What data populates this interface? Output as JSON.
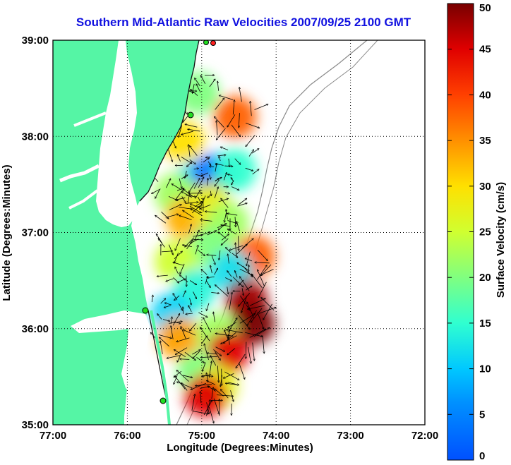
{
  "chart_data": {
    "type": "heatmap",
    "title": "Southern Mid-Atlantic Raw Velocities 2007/09/25 2100 GMT",
    "xlabel": "Longitude (Degrees:Minutes)",
    "ylabel": "Latitude (Degrees:Minutes)",
    "colorbar_label": "Surface Velocity (cm/s)",
    "x_ticks": [
      "77:00",
      "76:00",
      "75:00",
      "74:00",
      "73:00",
      "72:00"
    ],
    "y_ticks": [
      "39:00",
      "38:00",
      "37:00",
      "36:00",
      "35:00"
    ],
    "colorbar_ticks": [
      "0",
      "5",
      "10",
      "15",
      "20",
      "25",
      "30",
      "35",
      "40",
      "45",
      "50"
    ],
    "xlim": [
      -77,
      -72
    ],
    "ylim": [
      35,
      39
    ],
    "clim": [
      0,
      50
    ],
    "grid": true,
    "colormap": "jet",
    "colors": {
      "land": "#55f5a5",
      "title": "#1010e0",
      "station": "#22dd22",
      "station_alt": "#ff2020"
    },
    "velocity_patches": [
      {
        "lon": -75.05,
        "lat": 38.45,
        "v": 20
      },
      {
        "lon": -74.55,
        "lat": 38.2,
        "v": 38
      },
      {
        "lon": -75.25,
        "lat": 37.95,
        "v": 30
      },
      {
        "lon": -75.05,
        "lat": 37.55,
        "v": 12
      },
      {
        "lon": -74.85,
        "lat": 37.6,
        "v": 3
      },
      {
        "lon": -74.55,
        "lat": 37.65,
        "v": 15
      },
      {
        "lon": -75.35,
        "lat": 37.4,
        "v": 22
      },
      {
        "lon": -75.2,
        "lat": 37.15,
        "v": 33
      },
      {
        "lon": -74.9,
        "lat": 37.3,
        "v": 28
      },
      {
        "lon": -74.65,
        "lat": 37.1,
        "v": 22
      },
      {
        "lon": -74.3,
        "lat": 36.75,
        "v": 38
      },
      {
        "lon": -74.9,
        "lat": 36.85,
        "v": 20
      },
      {
        "lon": -75.35,
        "lat": 36.7,
        "v": 25
      },
      {
        "lon": -74.6,
        "lat": 36.6,
        "v": 12
      },
      {
        "lon": -75.1,
        "lat": 36.4,
        "v": 14
      },
      {
        "lon": -74.4,
        "lat": 36.3,
        "v": 48
      },
      {
        "lon": -74.3,
        "lat": 36.05,
        "v": 50
      },
      {
        "lon": -75.4,
        "lat": 36.15,
        "v": 11
      },
      {
        "lon": -75.3,
        "lat": 35.9,
        "v": 34
      },
      {
        "lon": -74.8,
        "lat": 35.95,
        "v": 22
      },
      {
        "lon": -74.65,
        "lat": 35.75,
        "v": 45
      },
      {
        "lon": -75.05,
        "lat": 35.55,
        "v": 20
      },
      {
        "lon": -74.8,
        "lat": 35.4,
        "v": 27
      },
      {
        "lon": -74.95,
        "lat": 35.3,
        "v": 45
      }
    ]
  }
}
